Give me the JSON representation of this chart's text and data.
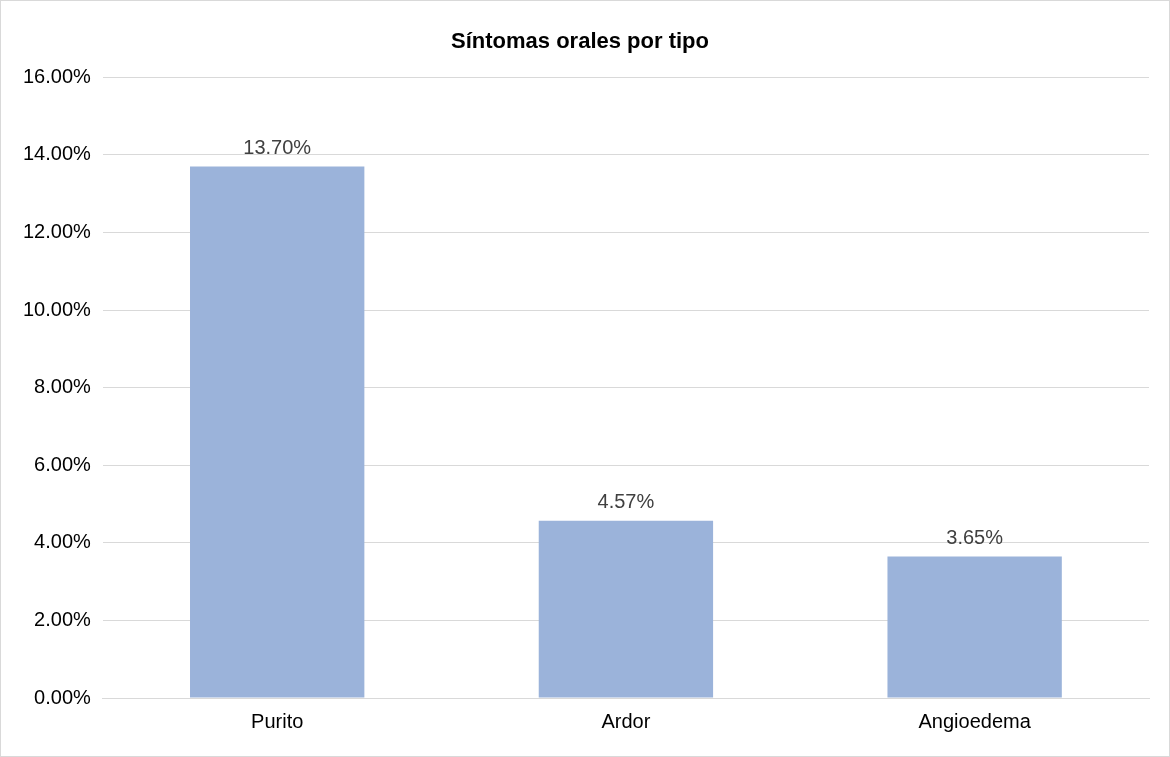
{
  "chart_data": {
    "type": "bar",
    "title": "Síntomas orales por tipo",
    "categories": [
      "Purito",
      "Ardor",
      "Angioedema"
    ],
    "values": [
      13.7,
      4.57,
      3.65
    ],
    "value_labels": [
      "13.70%",
      "4.57%",
      "3.65%"
    ],
    "color": "#9bb3da",
    "ylim": [
      0,
      16
    ],
    "yticks": [
      {
        "value": 0,
        "label": "0.00%"
      },
      {
        "value": 2,
        "label": "2.00%"
      },
      {
        "value": 4,
        "label": "4.00%"
      },
      {
        "value": 6,
        "label": "6.00%"
      },
      {
        "value": 8,
        "label": "8.00%"
      },
      {
        "value": 10,
        "label": "10.00%"
      },
      {
        "value": 12,
        "label": "12.00%"
      },
      {
        "value": 14,
        "label": "14.00%"
      },
      {
        "value": 16,
        "label": "16.00%"
      }
    ],
    "grid": "y"
  }
}
